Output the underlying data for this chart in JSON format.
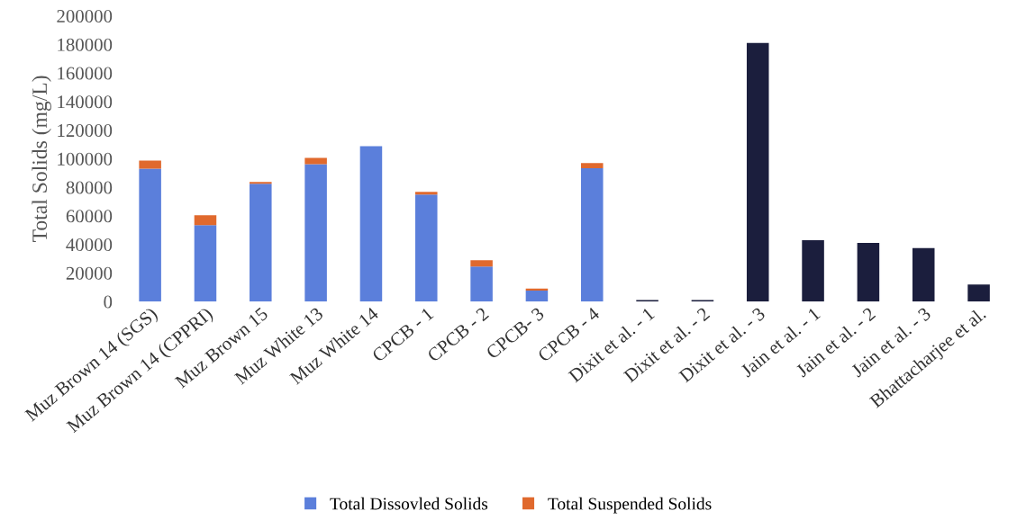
{
  "chart_data": {
    "type": "bar",
    "stacked": true,
    "ylabel": "Total Solids (mg/L)",
    "categories": [
      "Muz Brown 14 (SGS)",
      "Muz Brown 14 (CPPRI)",
      "Muz Brown 15",
      "Muz White 13",
      "Muz White 14",
      "CPCB - 1",
      "CPCB - 2",
      "CPCB- 3",
      "CPCB - 4",
      "Dixit et al. - 1",
      "Dixit et al. - 2",
      "Dixit et al. - 3",
      "Jain et al. - 1",
      "Jain et al. - 2",
      "Jain et al. - 3",
      "Bhattacharjee et al."
    ],
    "series": [
      {
        "name": "Total Dissovled Solids",
        "color": "#5b7fdb",
        "values": [
          93000,
          53500,
          82400,
          96200,
          108800,
          74900,
          24500,
          7700,
          93400,
          null,
          null,
          null,
          null,
          null,
          null,
          null
        ]
      },
      {
        "name": "Total Suspended Solids",
        "color": "#e0692d",
        "values": [
          5700,
          6900,
          1300,
          4400,
          null,
          1900,
          4400,
          1400,
          3500,
          null,
          null,
          null,
          null,
          null,
          null,
          null
        ]
      },
      {
        "color": "#1b1e3d",
        "values": [
          null,
          null,
          null,
          null,
          null,
          null,
          null,
          null,
          null,
          1000,
          1000,
          181000,
          43000,
          41100,
          37400,
          11900
        ]
      }
    ],
    "ylim": [
      0,
      200000
    ],
    "yticks": [
      0,
      20000,
      40000,
      60000,
      80000,
      100000,
      120000,
      140000,
      160000,
      180000,
      200000
    ],
    "legend": "bottom",
    "grid": false
  }
}
